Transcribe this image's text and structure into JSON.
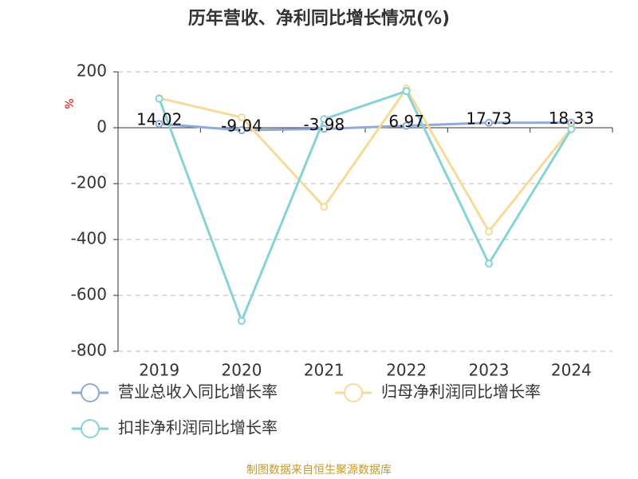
{
  "chart_data": {
    "type": "line",
    "title": "历年营收、净利同比增长情况(%)",
    "y_label": "%",
    "source": "制图数据来自恒生聚源数据库",
    "categories": [
      "2019",
      "2020",
      "2021",
      "2022",
      "2023",
      "2024"
    ],
    "series": [
      {
        "name": "营业总收入同比增长率",
        "color": "#8fa9d8",
        "values": [
          14.02,
          -9.04,
          -3.98,
          6.97,
          17.73,
          18.33
        ],
        "show_labels": true
      },
      {
        "name": "归母净利润同比增长率",
        "color": "#f9d99a",
        "values": [
          106,
          37,
          -283,
          140,
          -371,
          -2
        ]
      },
      {
        "name": "扣非净利润同比增长率",
        "color": "#86d3d6",
        "values": [
          104,
          -691,
          31,
          131,
          -486,
          -5
        ]
      }
    ],
    "ylim": [
      -800,
      200
    ],
    "yticks": [
      -800,
      -600,
      -400,
      -200,
      0,
      200
    ],
    "grid": true
  }
}
